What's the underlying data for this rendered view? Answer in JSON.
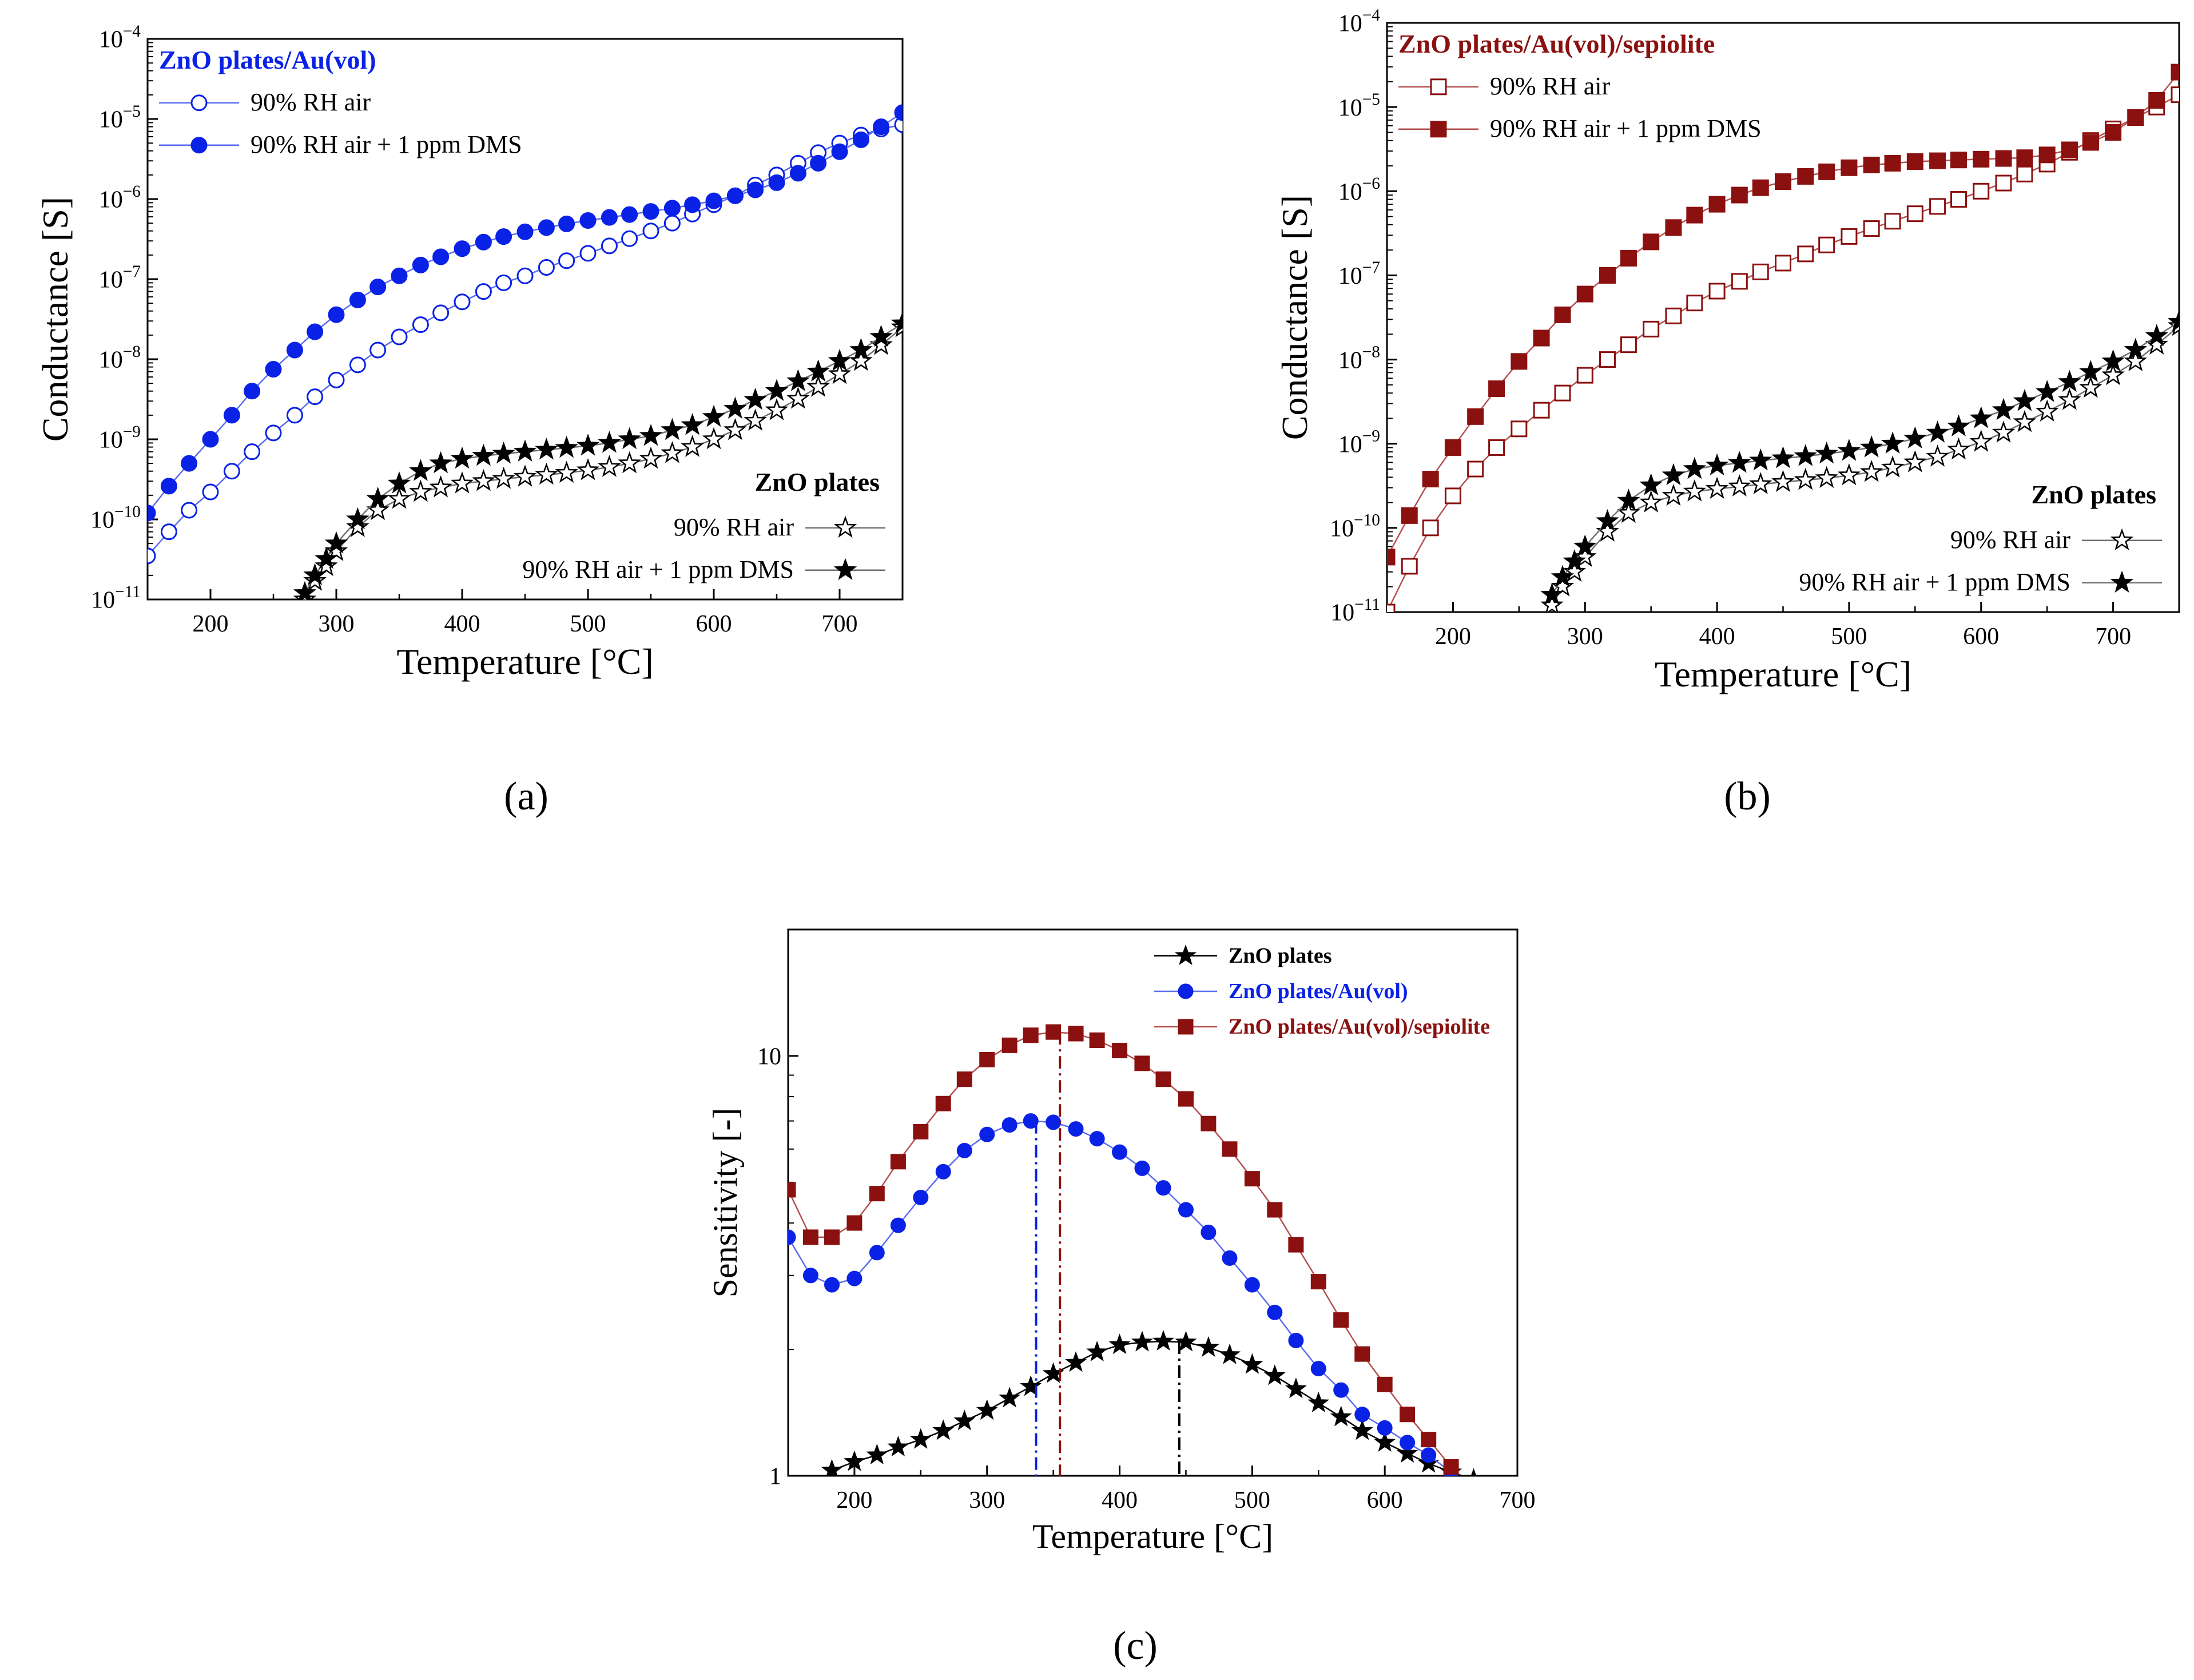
{
  "colors": {
    "blue": "#0a22e6",
    "darkred": "#8b1010",
    "black": "#000000",
    "line_blue": "#5a6cf0",
    "line_red": "#b45050",
    "line_gray": "#707070"
  },
  "chart_data": [
    {
      "id": "a",
      "panel_label": "(a)",
      "type": "scatter",
      "y_scale": "log",
      "xlabel": "Temperature [°C]",
      "ylabel": "Conductance [S]",
      "xlim": [
        150,
        750
      ],
      "ylim": [
        1e-11,
        0.0001
      ],
      "x_ticks": [
        200,
        300,
        400,
        500,
        600,
        700
      ],
      "y_ticks": [
        "10-11",
        "10-10",
        "10-9",
        "10-8",
        "10-7",
        "10-6",
        "10-5",
        "10-4"
      ],
      "legend_top": {
        "title": "ZnO plates/Au(vol)",
        "placement": "top-left",
        "title_color": "#0a22e6"
      },
      "legend_bottom": {
        "title": "ZnO plates",
        "placement": "bottom-right"
      },
      "series": [
        {
          "name": "90% RH air",
          "group": "top",
          "marker": "circle-open",
          "color": "#0a22e6",
          "line_color": "#5a6cf0",
          "x": [
            150,
            167,
            183,
            200,
            217,
            233,
            250,
            267,
            283,
            300,
            317,
            333,
            350,
            367,
            383,
            400,
            417,
            433,
            450,
            467,
            483,
            500,
            517,
            533,
            550,
            567,
            583,
            600,
            617,
            633,
            650,
            667,
            683,
            700,
            717,
            733,
            750
          ],
          "y": [
            3.5e-11,
            7e-11,
            1.3e-10,
            2.2e-10,
            4e-10,
            7e-10,
            1.2e-09,
            2e-09,
            3.4e-09,
            5.5e-09,
            8.5e-09,
            1.3e-08,
            1.9e-08,
            2.7e-08,
            3.8e-08,
            5.2e-08,
            7e-08,
            9e-08,
            1.1e-07,
            1.4e-07,
            1.7e-07,
            2.1e-07,
            2.6e-07,
            3.2e-07,
            4e-07,
            5e-07,
            6.5e-07,
            8.5e-07,
            1.1e-06,
            1.5e-06,
            2e-06,
            2.8e-06,
            3.8e-06,
            5e-06,
            6.3e-06,
            7.5e-06,
            8.5e-06
          ]
        },
        {
          "name": "90% RH air + 1 ppm DMS",
          "group": "top",
          "marker": "circle-filled",
          "color": "#0a22e6",
          "line_color": "#5a6cf0",
          "x": [
            150,
            167,
            183,
            200,
            217,
            233,
            250,
            267,
            283,
            300,
            317,
            333,
            350,
            367,
            383,
            400,
            417,
            433,
            450,
            467,
            483,
            500,
            517,
            533,
            550,
            567,
            583,
            600,
            617,
            633,
            650,
            667,
            683,
            700,
            717,
            733,
            750
          ],
          "y": [
            1.2e-10,
            2.6e-10,
            5e-10,
            1e-09,
            2e-09,
            4e-09,
            7.5e-09,
            1.3e-08,
            2.2e-08,
            3.6e-08,
            5.5e-08,
            8e-08,
            1.1e-07,
            1.5e-07,
            1.9e-07,
            2.4e-07,
            2.9e-07,
            3.4e-07,
            3.9e-07,
            4.4e-07,
            4.9e-07,
            5.4e-07,
            5.9e-07,
            6.4e-07,
            7e-07,
            7.7e-07,
            8.5e-07,
            9.5e-07,
            1.1e-06,
            1.3e-06,
            1.6e-06,
            2.1e-06,
            2.8e-06,
            3.9e-06,
            5.5e-06,
            8e-06,
            1.2e-05
          ]
        },
        {
          "name": "90% RH air",
          "group": "bottom",
          "marker": "star-open",
          "color": "#000000",
          "line_color": "#707070",
          "x": [
            275,
            283,
            292,
            300,
            317,
            333,
            350,
            367,
            383,
            400,
            417,
            433,
            450,
            467,
            483,
            500,
            517,
            533,
            550,
            567,
            583,
            600,
            617,
            633,
            650,
            667,
            683,
            700,
            717,
            733,
            750
          ],
          "y": [
            1e-11,
            1.7e-11,
            2.6e-11,
            4e-11,
            8e-11,
            1.3e-10,
            1.8e-10,
            2.2e-10,
            2.5e-10,
            2.8e-10,
            3e-10,
            3.2e-10,
            3.4e-10,
            3.6e-10,
            3.8e-10,
            4.1e-10,
            4.5e-10,
            5e-10,
            5.7e-10,
            6.7e-10,
            8e-10,
            1e-09,
            1.3e-09,
            1.7e-09,
            2.3e-09,
            3.2e-09,
            4.5e-09,
            6.5e-09,
            9.5e-09,
            1.5e-08,
            2.5e-08
          ]
        },
        {
          "name": "90% RH air + 1 ppm DMS",
          "group": "bottom",
          "marker": "star-filled",
          "color": "#000000",
          "line_color": "#707070",
          "x": [
            275,
            283,
            292,
            300,
            317,
            333,
            350,
            367,
            383,
            400,
            417,
            433,
            450,
            467,
            483,
            500,
            517,
            533,
            550,
            567,
            583,
            600,
            617,
            633,
            650,
            667,
            683,
            700,
            717,
            733,
            750
          ],
          "y": [
            1.2e-11,
            2e-11,
            3.2e-11,
            5e-11,
            1e-10,
            1.8e-10,
            2.8e-10,
            4e-10,
            5e-10,
            5.7e-10,
            6.2e-10,
            6.6e-10,
            7e-10,
            7.4e-10,
            7.8e-10,
            8.3e-10,
            9e-10,
            1e-09,
            1.1e-09,
            1.3e-09,
            1.5e-09,
            1.9e-09,
            2.4e-09,
            3.1e-09,
            4e-09,
            5.3e-09,
            7e-09,
            9.5e-09,
            1.3e-08,
            1.9e-08,
            2.8e-08
          ]
        }
      ]
    },
    {
      "id": "b",
      "panel_label": "(b)",
      "type": "scatter",
      "y_scale": "log",
      "xlabel": "Temperature [°C]",
      "ylabel": "Conductance [S]",
      "xlim": [
        150,
        750
      ],
      "ylim": [
        1e-11,
        0.0001
      ],
      "x_ticks": [
        200,
        300,
        400,
        500,
        600,
        700
      ],
      "y_ticks": [
        "10-11",
        "10-10",
        "10-9",
        "10-8",
        "10-7",
        "10-6",
        "10-5",
        "10-4"
      ],
      "legend_top": {
        "title": "ZnO plates/Au(vol)/sepiolite",
        "placement": "top-left",
        "title_color": "#8b1010"
      },
      "legend_bottom": {
        "title": "ZnO plates",
        "placement": "bottom-right"
      },
      "series": [
        {
          "name": "90% RH air",
          "group": "top",
          "marker": "square-open",
          "color": "#8b1010",
          "line_color": "#b45050",
          "x": [
            150,
            167,
            183,
            200,
            217,
            233,
            250,
            267,
            283,
            300,
            317,
            333,
            350,
            367,
            383,
            400,
            417,
            433,
            450,
            467,
            483,
            500,
            517,
            533,
            550,
            567,
            583,
            600,
            617,
            633,
            650,
            667,
            683,
            700,
            717,
            733,
            750
          ],
          "y": [
            1e-11,
            3.5e-11,
            1e-10,
            2.4e-10,
            5e-10,
            9e-10,
            1.5e-09,
            2.5e-09,
            4e-09,
            6.5e-09,
            1e-08,
            1.5e-08,
            2.3e-08,
            3.3e-08,
            4.7e-08,
            6.5e-08,
            8.5e-08,
            1.1e-07,
            1.4e-07,
            1.8e-07,
            2.3e-07,
            2.9e-07,
            3.6e-07,
            4.4e-07,
            5.4e-07,
            6.6e-07,
            8e-07,
            1e-06,
            1.25e-06,
            1.6e-06,
            2.1e-06,
            2.9e-06,
            4e-06,
            5.5e-06,
            7.5e-06,
            1e-05,
            1.4e-05
          ]
        },
        {
          "name": "90% RH air + 1 ppm DMS",
          "group": "top",
          "marker": "square-filled",
          "color": "#8b1010",
          "line_color": "#b45050",
          "x": [
            150,
            167,
            183,
            200,
            217,
            233,
            250,
            267,
            283,
            300,
            317,
            333,
            350,
            367,
            383,
            400,
            417,
            433,
            450,
            467,
            483,
            500,
            517,
            533,
            550,
            567,
            583,
            600,
            617,
            633,
            650,
            667,
            683,
            700,
            717,
            733,
            750
          ],
          "y": [
            4.5e-11,
            1.4e-10,
            3.8e-10,
            9e-10,
            2.1e-09,
            4.5e-09,
            9.5e-09,
            1.8e-08,
            3.4e-08,
            6e-08,
            1e-07,
            1.6e-07,
            2.5e-07,
            3.7e-07,
            5.2e-07,
            7e-07,
            9e-07,
            1.1e-06,
            1.3e-06,
            1.5e-06,
            1.7e-06,
            1.9e-06,
            2.05e-06,
            2.15e-06,
            2.25e-06,
            2.3e-06,
            2.35e-06,
            2.4e-06,
            2.45e-06,
            2.5e-06,
            2.7e-06,
            3.1e-06,
            3.8e-06,
            5e-06,
            7.5e-06,
            1.2e-05,
            2.6e-05
          ]
        },
        {
          "name": "90% RH air",
          "group": "bottom",
          "marker": "star-open",
          "color": "#000000",
          "line_color": "#707070",
          "x": [
            275,
            283,
            292,
            300,
            317,
            333,
            350,
            367,
            383,
            400,
            417,
            433,
            450,
            467,
            483,
            500,
            517,
            533,
            550,
            567,
            583,
            600,
            617,
            633,
            650,
            667,
            683,
            700,
            717,
            733,
            750
          ],
          "y": [
            1.2e-11,
            2e-11,
            3e-11,
            4.5e-11,
            9e-11,
            1.5e-10,
            2e-10,
            2.4e-10,
            2.7e-10,
            2.9e-10,
            3.1e-10,
            3.3e-10,
            3.5e-10,
            3.7e-10,
            3.9e-10,
            4.2e-10,
            4.6e-10,
            5.2e-10,
            6e-10,
            7e-10,
            8.5e-10,
            1.05e-09,
            1.35e-09,
            1.8e-09,
            2.4e-09,
            3.3e-09,
            4.6e-09,
            6.5e-09,
            9.5e-09,
            1.5e-08,
            2.5e-08
          ]
        },
        {
          "name": "90% RH air + 1 ppm DMS",
          "group": "bottom",
          "marker": "star-filled",
          "color": "#000000",
          "line_color": "#707070",
          "x": [
            275,
            283,
            292,
            300,
            317,
            333,
            350,
            367,
            383,
            400,
            417,
            433,
            450,
            467,
            483,
            500,
            517,
            533,
            550,
            567,
            583,
            600,
            617,
            633,
            650,
            667,
            683,
            700,
            717,
            733,
            750
          ],
          "y": [
            1.6e-11,
            2.6e-11,
            4e-11,
            6e-11,
            1.2e-10,
            2.1e-10,
            3.2e-10,
            4.2e-10,
            5e-10,
            5.5e-10,
            5.9e-10,
            6.3e-10,
            6.7e-10,
            7.1e-10,
            7.6e-10,
            8.2e-10,
            9e-10,
            1e-09,
            1.15e-09,
            1.35e-09,
            1.6e-09,
            2e-09,
            2.5e-09,
            3.2e-09,
            4.1e-09,
            5.4e-09,
            7.1e-09,
            9.5e-09,
            1.3e-08,
            1.9e-08,
            2.8e-08
          ]
        }
      ]
    },
    {
      "id": "c",
      "panel_label": "(c)",
      "type": "scatter",
      "y_scale": "log",
      "xlabel": "Temperature [°C]",
      "ylabel": "Sensitivity [-]",
      "xlim": [
        150,
        700
      ],
      "ylim": [
        1,
        20
      ],
      "x_ticks": [
        200,
        300,
        400,
        500,
        600,
        700
      ],
      "y_ticks": [
        "1",
        "10"
      ],
      "legend": {
        "placement": "top-right"
      },
      "series": [
        {
          "name": "ZnO plates",
          "marker": "star-filled",
          "color": "#000000",
          "line_color": "#000000",
          "peak_x": 445,
          "x": [
            183,
            200,
            217,
            233,
            250,
            267,
            283,
            300,
            317,
            333,
            350,
            367,
            383,
            400,
            417,
            433,
            450,
            467,
            483,
            500,
            517,
            533,
            550,
            567,
            583,
            600,
            617,
            633,
            650,
            667
          ],
          "y": [
            1.03,
            1.08,
            1.12,
            1.17,
            1.22,
            1.28,
            1.35,
            1.43,
            1.53,
            1.63,
            1.75,
            1.86,
            1.97,
            2.05,
            2.08,
            2.09,
            2.08,
            2.02,
            1.94,
            1.84,
            1.73,
            1.61,
            1.49,
            1.38,
            1.28,
            1.2,
            1.13,
            1.07,
            1.02,
            0.98
          ]
        },
        {
          "name": "ZnO plates/Au(vol)",
          "marker": "circle-filled",
          "color": "#0a22e6",
          "line_color": "#5a6cf0",
          "peak_x": 337,
          "x": [
            150,
            167,
            183,
            200,
            217,
            233,
            250,
            267,
            283,
            300,
            317,
            333,
            350,
            367,
            383,
            400,
            417,
            433,
            450,
            467,
            483,
            500,
            517,
            533,
            550,
            567,
            583,
            600,
            617,
            633,
            650
          ],
          "y": [
            3.7,
            3.0,
            2.85,
            2.95,
            3.4,
            3.95,
            4.6,
            5.3,
            5.95,
            6.5,
            6.85,
            7.0,
            6.95,
            6.7,
            6.35,
            5.9,
            5.4,
            4.85,
            4.3,
            3.8,
            3.3,
            2.85,
            2.45,
            2.1,
            1.8,
            1.6,
            1.4,
            1.3,
            1.2,
            1.12,
            1.02
          ]
        },
        {
          "name": "ZnO plates/Au(vol)/sepiolite",
          "marker": "square-filled",
          "color": "#8b1010",
          "line_color": "#b45050",
          "peak_x": 355,
          "x": [
            150,
            167,
            183,
            200,
            217,
            233,
            250,
            267,
            283,
            300,
            317,
            333,
            350,
            367,
            383,
            400,
            417,
            433,
            450,
            467,
            483,
            500,
            517,
            533,
            550,
            567,
            583,
            600,
            617,
            633,
            650
          ],
          "y": [
            4.8,
            3.7,
            3.7,
            4.0,
            4.7,
            5.6,
            6.6,
            7.7,
            8.8,
            9.8,
            10.6,
            11.2,
            11.4,
            11.3,
            10.9,
            10.3,
            9.6,
            8.8,
            7.9,
            6.9,
            6.0,
            5.1,
            4.3,
            3.55,
            2.9,
            2.35,
            1.95,
            1.65,
            1.4,
            1.22,
            1.05
          ]
        }
      ]
    }
  ]
}
